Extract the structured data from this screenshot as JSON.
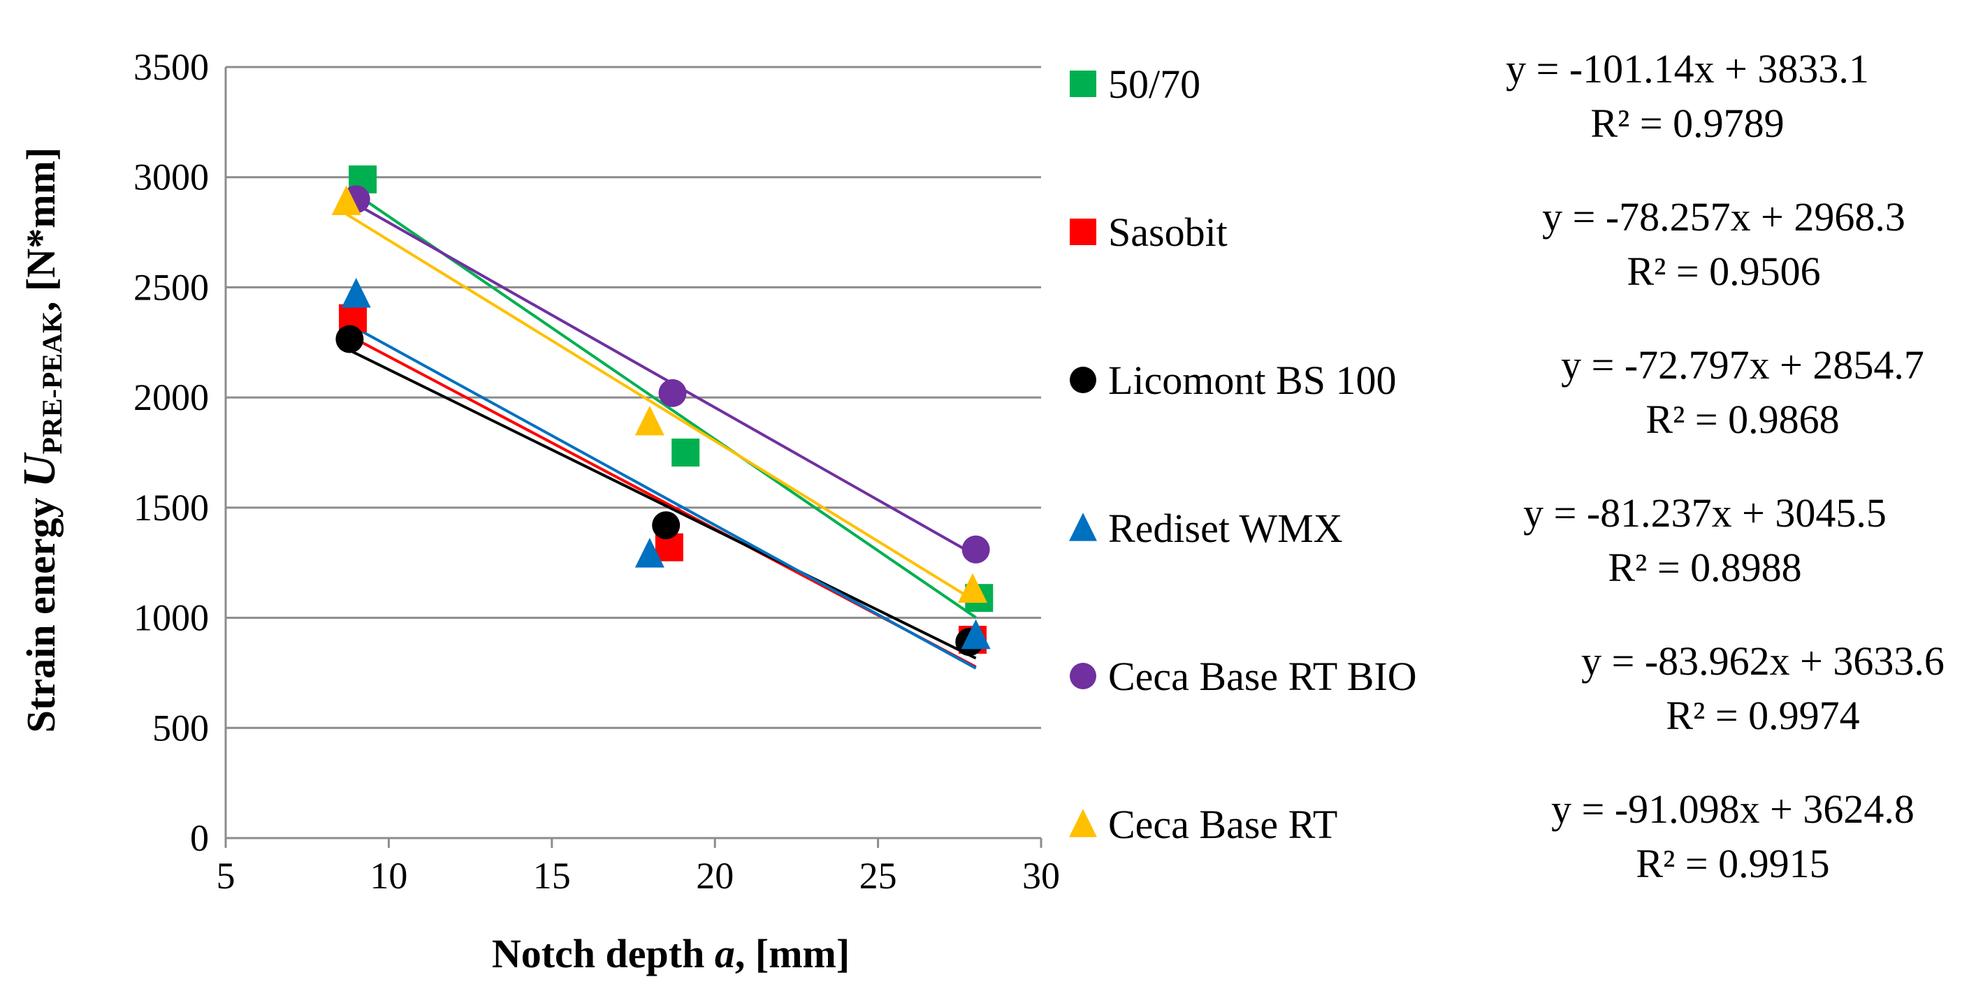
{
  "chart_data": {
    "type": "scatter",
    "title": "",
    "xlabel": {
      "pre": "Notch depth ",
      "italic": "a",
      "post": ", [mm]"
    },
    "ylabel": {
      "pre": "Strain energy ",
      "italic": "U",
      "sub": "PRE-PEAK",
      "post": ", [N*mm]"
    },
    "xlim": [
      5,
      30
    ],
    "ylim": [
      0,
      3500
    ],
    "xticks": [
      5,
      10,
      15,
      20,
      25,
      30
    ],
    "yticks": [
      0,
      500,
      1000,
      1500,
      2000,
      2500,
      3000,
      3500
    ],
    "grid": "horizontal",
    "legend_position": "right",
    "series": [
      {
        "name": "50/70",
        "color": "#00B050",
        "marker": "square",
        "x": [
          9.2,
          19.1,
          28.1
        ],
        "y": [
          2990,
          1750,
          1090
        ],
        "trend": {
          "x": [
            9.0,
            28.0
          ]
        },
        "equation": "y = -101.14x + 3833.1",
        "r2": "R² = 0.9789"
      },
      {
        "name": "Sasobit",
        "color": "#FF0000",
        "marker": "square",
        "x": [
          8.9,
          18.6,
          27.9
        ],
        "y": [
          2360,
          1320,
          900
        ],
        "trend": {
          "x": [
            8.8,
            28.0
          ]
        },
        "equation": "y = -78.257x + 2968.3",
        "r2": "R² = 0.9506"
      },
      {
        "name": "Licomont BS 100",
        "color": "#000000",
        "marker": "circle",
        "x": [
          8.8,
          18.5,
          27.8
        ],
        "y": [
          2265,
          1420,
          890
        ],
        "trend": {
          "x": [
            8.8,
            28.0
          ]
        },
        "equation": "y = -72.797x + 2854.7",
        "r2": "R² = 0.9868"
      },
      {
        "name": "Rediset WMX",
        "color": "#0070C0",
        "marker": "triangle",
        "x": [
          9.0,
          18.0,
          28.0
        ],
        "y": [
          2470,
          1290,
          920
        ],
        "trend": {
          "x": [
            9.0,
            28.0
          ]
        },
        "equation": "y = -81.237x + 3045.5",
        "r2": "R² = 0.8988"
      },
      {
        "name": "Ceca Base RT BIO",
        "color": "#7030A0",
        "marker": "circle",
        "x": [
          9.0,
          18.7,
          28.0
        ],
        "y": [
          2900,
          2020,
          1310
        ],
        "trend": {
          "x": [
            9.0,
            28.0
          ]
        },
        "equation": "y = -83.962x + 3633.6",
        "r2": "R² = 0.9974"
      },
      {
        "name": "Ceca Base RT",
        "color": "#FFC000",
        "marker": "triangle",
        "x": [
          8.7,
          18.0,
          27.9
        ],
        "y": [
          2890,
          1890,
          1130
        ],
        "trend": {
          "x": [
            8.7,
            28.0
          ]
        },
        "equation": "y = -91.098x + 3624.8",
        "r2": "R² = 0.9915"
      }
    ]
  }
}
